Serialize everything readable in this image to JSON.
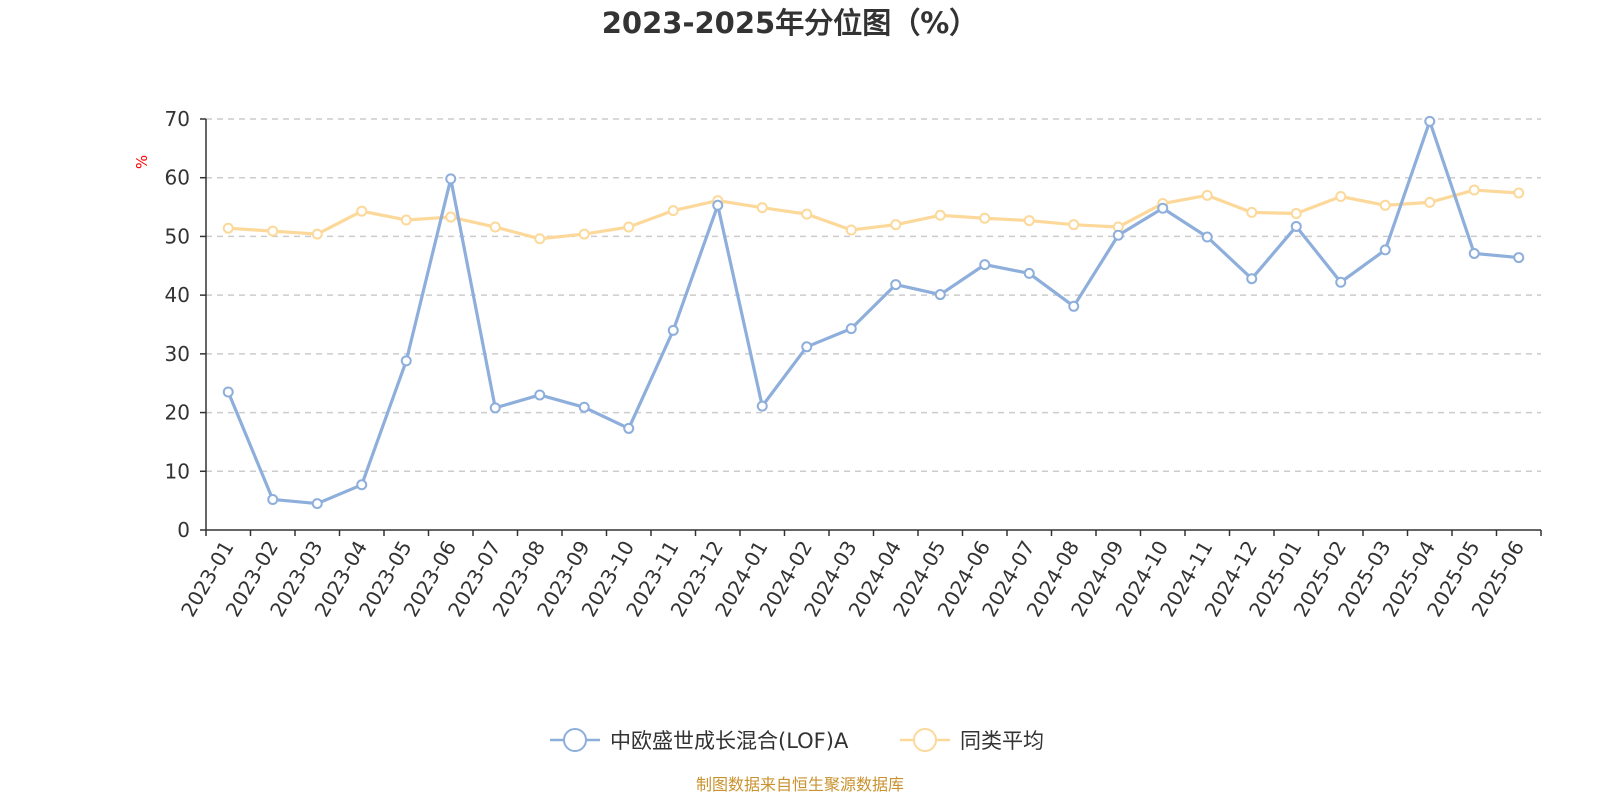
{
  "chart_data": {
    "type": "line",
    "title": "2023-2025年分位图（%）",
    "ylabel": "%",
    "xlabel": "",
    "ylim": [
      0,
      70
    ],
    "yticks": [
      0,
      10,
      20,
      30,
      40,
      50,
      60,
      70
    ],
    "grid": true,
    "legend_position": "bottom-center",
    "categories": [
      "2023-01",
      "2023-02",
      "2023-03",
      "2023-04",
      "2023-05",
      "2023-06",
      "2023-07",
      "2023-08",
      "2023-09",
      "2023-10",
      "2023-11",
      "2023-12",
      "2024-01",
      "2024-02",
      "2024-03",
      "2024-04",
      "2024-05",
      "2024-06",
      "2024-07",
      "2024-08",
      "2024-09",
      "2024-10",
      "2024-11",
      "2024-12",
      "2025-01",
      "2025-02",
      "2025-03",
      "2025-04",
      "2025-05",
      "2025-06"
    ],
    "series": [
      {
        "name": "中欧盛世成长混合(LOF)A",
        "color": "#8eaedb",
        "values": [
          23.5,
          5.2,
          4.5,
          7.7,
          28.8,
          59.8,
          20.8,
          23.0,
          20.9,
          17.3,
          34.0,
          55.3,
          21.1,
          31.2,
          34.3,
          41.8,
          40.1,
          45.2,
          43.7,
          38.1,
          50.2,
          54.8,
          49.9,
          42.8,
          51.7,
          42.2,
          47.7,
          69.6,
          47.1,
          46.4
        ]
      },
      {
        "name": "同类平均",
        "color": "#fcd99a",
        "values": [
          51.4,
          50.9,
          50.4,
          54.3,
          52.8,
          53.3,
          51.6,
          49.6,
          50.4,
          51.6,
          54.4,
          56.1,
          54.9,
          53.8,
          51.1,
          52.0,
          53.6,
          53.1,
          52.7,
          52.0,
          51.6,
          55.6,
          57.0,
          54.1,
          53.9,
          56.8,
          55.3,
          55.8,
          57.9,
          57.4
        ]
      }
    ]
  },
  "source_text": "制图数据来自恒生聚源数据库",
  "source_color": "#c8922e",
  "axis_color": "#333333",
  "grid_color": "#cccccc",
  "marker_fill": "#ffffff"
}
